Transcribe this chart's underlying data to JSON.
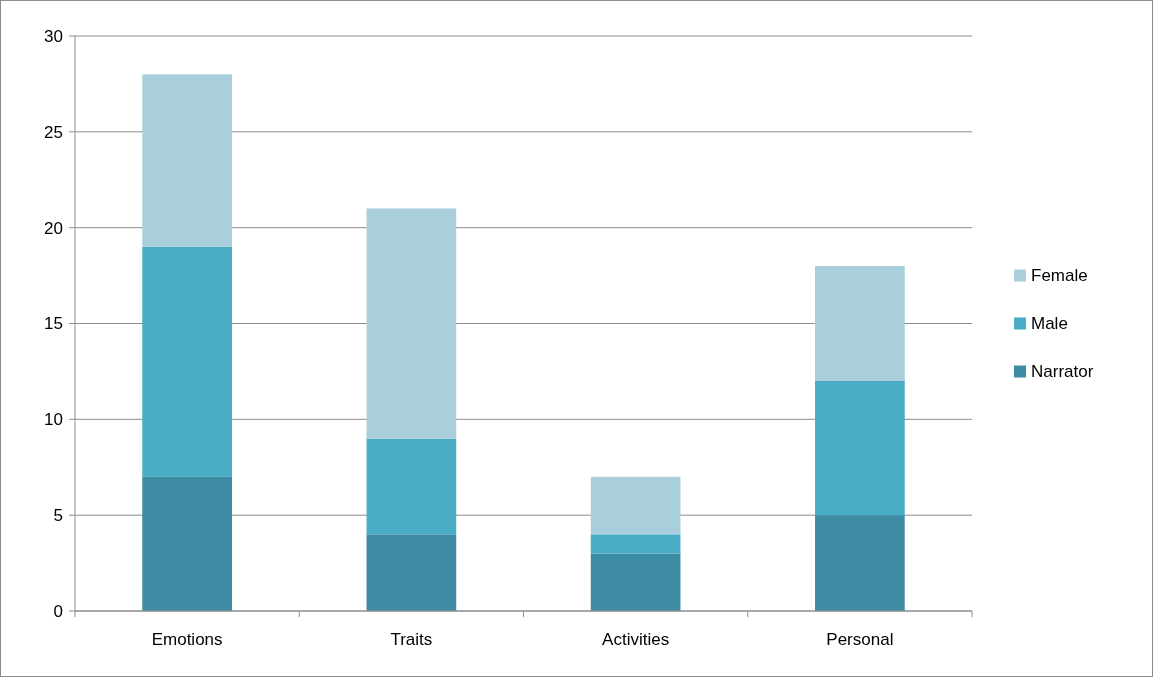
{
  "chart_data": {
    "type": "bar",
    "stacked": true,
    "categories": [
      "Emotions",
      "Traits",
      "Activities",
      "Personal"
    ],
    "series": [
      {
        "name": "Narrator",
        "color": "#3e8ca4",
        "values": [
          7,
          4,
          3,
          5
        ]
      },
      {
        "name": "Male",
        "color": "#4bacc6",
        "values": [
          12,
          5,
          1,
          7
        ]
      },
      {
        "name": "Female",
        "color": "#a9cfdc",
        "values": [
          9,
          12,
          3,
          6
        ]
      }
    ],
    "ylim": [
      0,
      30
    ],
    "yticks": [
      0,
      5,
      10,
      15,
      20,
      25,
      30
    ],
    "grid": "y",
    "legend": "right"
  }
}
